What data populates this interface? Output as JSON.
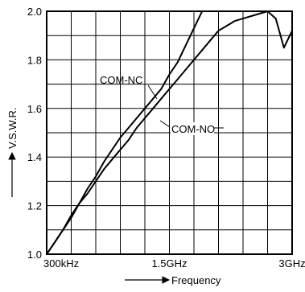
{
  "chart_data": {
    "type": "line",
    "title": "",
    "xlabel": "Frequency",
    "ylabel": "V.S.W.R.",
    "xlim": [
      0,
      3
    ],
    "ylim": [
      1.0,
      2.0
    ],
    "x_ticks": [
      {
        "value": 0.0003,
        "label": "300kHz"
      },
      {
        "value": 1.5,
        "label": "1.5GHz"
      },
      {
        "value": 3.0,
        "label": "3GHz"
      }
    ],
    "y_ticks": [
      {
        "value": 1.0,
        "label": "1.0"
      },
      {
        "value": 1.2,
        "label": "1.2"
      },
      {
        "value": 1.4,
        "label": "1.4"
      },
      {
        "value": 1.6,
        "label": "1.6"
      },
      {
        "value": 1.8,
        "label": "1.8"
      },
      {
        "value": 2.0,
        "label": "2.0"
      }
    ],
    "grid": true,
    "series": [
      {
        "name": "COM-NC",
        "x": [
          0.0003,
          0.1,
          0.2,
          0.3,
          0.4,
          0.5,
          0.6,
          0.7,
          0.8,
          0.9,
          1.0,
          1.1,
          1.2,
          1.3,
          1.4,
          1.5,
          1.6,
          1.7,
          1.8,
          1.9,
          2.0,
          2.1,
          2.2,
          2.4,
          2.6,
          2.8,
          2.9,
          3.0
        ],
        "y": [
          1.0,
          1.05,
          1.1,
          1.15,
          1.21,
          1.27,
          1.32,
          1.38,
          1.43,
          1.48,
          1.52,
          1.56,
          1.6,
          1.64,
          1.68,
          1.74,
          1.79,
          1.86,
          1.93,
          2.0,
          2.0,
          2.0,
          2.0,
          2.0,
          2.0,
          2.0,
          2.0,
          2.0
        ]
      },
      {
        "name": "COM-NO",
        "x": [
          0.0003,
          0.1,
          0.2,
          0.3,
          0.4,
          0.5,
          0.6,
          0.7,
          0.8,
          0.9,
          1.0,
          1.1,
          1.2,
          1.3,
          1.4,
          1.5,
          1.6,
          1.7,
          1.8,
          1.9,
          2.0,
          2.1,
          2.2,
          2.3,
          2.4,
          2.5,
          2.6,
          2.7,
          2.8,
          2.9,
          3.0
        ],
        "y": [
          1.0,
          1.05,
          1.1,
          1.16,
          1.21,
          1.25,
          1.3,
          1.35,
          1.39,
          1.43,
          1.47,
          1.52,
          1.56,
          1.6,
          1.64,
          1.68,
          1.72,
          1.76,
          1.8,
          1.84,
          1.88,
          1.92,
          1.94,
          1.96,
          1.97,
          1.98,
          1.99,
          2.0,
          1.97,
          1.85,
          1.92
        ]
      }
    ],
    "annotations": [
      {
        "text": "COM-NC",
        "series": "COM-NC"
      },
      {
        "text": "COM-NO",
        "series": "COM-NO"
      }
    ]
  }
}
